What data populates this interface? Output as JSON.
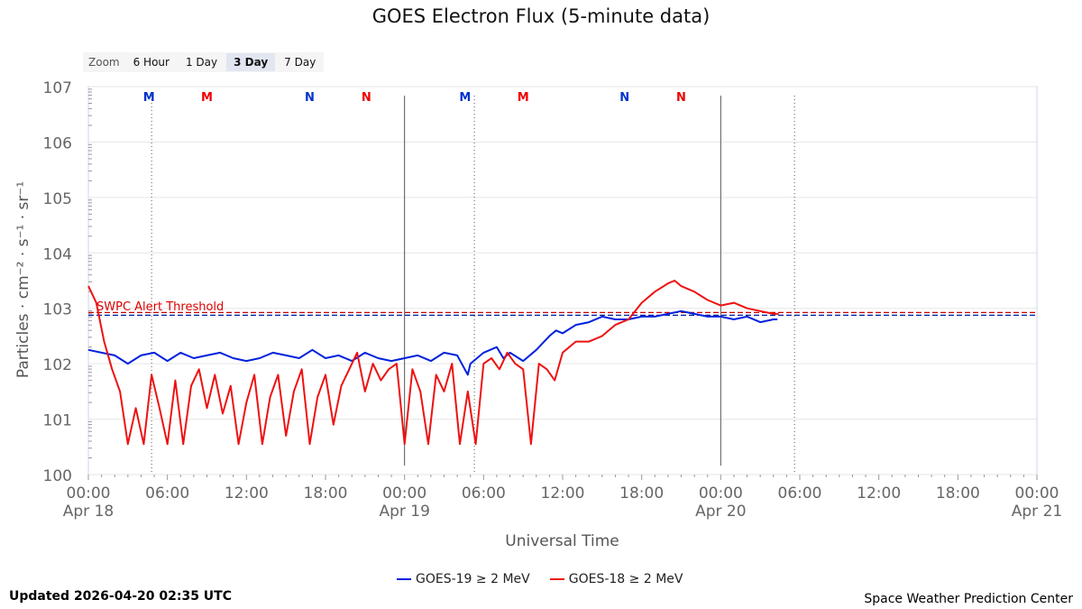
{
  "chart_data": {
    "type": "line",
    "title": "GOES Electron Flux (5-minute data)",
    "xlabel": "Universal Time",
    "ylabel": "Particles · cm⁻² · s⁻¹ · sr⁻¹",
    "yscale": "log",
    "ylim_exponent": [
      0,
      7
    ],
    "ytick_labels": [
      "100",
      "101",
      "102",
      "103",
      "104",
      "105",
      "106",
      "107"
    ],
    "xlim_hours": [
      0,
      72
    ],
    "xtick_labels": [
      {
        "hour": 0,
        "time": "00:00",
        "date": "Apr 18"
      },
      {
        "hour": 6,
        "time": "06:00",
        "date": ""
      },
      {
        "hour": 12,
        "time": "12:00",
        "date": ""
      },
      {
        "hour": 18,
        "time": "18:00",
        "date": ""
      },
      {
        "hour": 24,
        "time": "00:00",
        "date": "Apr 19"
      },
      {
        "hour": 30,
        "time": "06:00",
        "date": ""
      },
      {
        "hour": 36,
        "time": "12:00",
        "date": ""
      },
      {
        "hour": 42,
        "time": "18:00",
        "date": ""
      },
      {
        "hour": 48,
        "time": "00:00",
        "date": "Apr 20"
      },
      {
        "hour": 54,
        "time": "06:00",
        "date": ""
      },
      {
        "hour": 60,
        "time": "12:00",
        "date": ""
      },
      {
        "hour": 66,
        "time": "18:00",
        "date": ""
      },
      {
        "hour": 72,
        "time": "00:00",
        "date": "Apr 21"
      }
    ],
    "day_boundaries_hours": [
      24,
      48
    ],
    "dotted_markers_hours": [
      4.8,
      29.3,
      53.6
    ],
    "threshold": {
      "label": "SWPC Alert Threshold",
      "exponent": 2.9
    },
    "markers": [
      {
        "label": "M",
        "hour": 4.6,
        "color": "#0033cc"
      },
      {
        "label": "M",
        "hour": 9.0,
        "color": "#ee0000"
      },
      {
        "label": "N",
        "hour": 16.8,
        "color": "#0033cc"
      },
      {
        "label": "N",
        "hour": 21.1,
        "color": "#ee0000"
      },
      {
        "label": "M",
        "hour": 28.6,
        "color": "#0033cc"
      },
      {
        "label": "M",
        "hour": 33.0,
        "color": "#ee0000"
      },
      {
        "label": "N",
        "hour": 40.7,
        "color": "#0033cc"
      },
      {
        "label": "N",
        "hour": 45.0,
        "color": "#ee0000"
      }
    ],
    "series": [
      {
        "name": "GOES-19 ≥ 2 MeV",
        "color": "#0022dd",
        "x_hours": [
          0,
          1,
          2,
          3,
          4,
          5,
          6,
          7,
          8,
          9,
          10,
          11,
          12,
          13,
          14,
          15,
          16,
          17,
          18,
          19,
          20,
          21,
          22,
          23,
          24,
          25,
          26,
          27,
          28,
          28.8,
          29,
          30,
          31,
          31.5,
          32,
          33,
          34,
          35,
          35.5,
          36,
          37,
          38,
          39,
          40,
          41,
          42,
          43,
          44,
          45,
          46,
          47,
          48,
          49,
          50,
          51,
          52,
          52.3
        ],
        "exponent": [
          2.25,
          2.2,
          2.15,
          2.0,
          2.15,
          2.2,
          2.05,
          2.2,
          2.1,
          2.15,
          2.2,
          2.1,
          2.05,
          2.1,
          2.2,
          2.15,
          2.1,
          2.25,
          2.1,
          2.15,
          2.05,
          2.2,
          2.1,
          2.05,
          2.1,
          2.15,
          2.05,
          2.2,
          2.15,
          1.8,
          2.0,
          2.2,
          2.3,
          2.1,
          2.2,
          2.05,
          2.25,
          2.5,
          2.6,
          2.55,
          2.7,
          2.75,
          2.85,
          2.8,
          2.8,
          2.85,
          2.85,
          2.9,
          2.95,
          2.9,
          2.85,
          2.85,
          2.8,
          2.85,
          2.75,
          2.8,
          2.8
        ]
      },
      {
        "name": "GOES-18 ≥ 2 MeV",
        "color": "#ee1111",
        "x_hours": [
          0,
          0.6,
          1.2,
          1.8,
          2.4,
          3.0,
          3.6,
          4.2,
          4.8,
          5.4,
          6.0,
          6.6,
          7.2,
          7.8,
          8.4,
          9.0,
          9.6,
          10.2,
          10.8,
          11.4,
          12.0,
          12.6,
          13.2,
          13.8,
          14.4,
          15.0,
          15.6,
          16.2,
          16.8,
          17.4,
          18.0,
          18.6,
          19.2,
          19.8,
          20.4,
          21.0,
          21.6,
          22.2,
          22.8,
          23.4,
          24.0,
          24.6,
          25.2,
          25.8,
          26.4,
          27.0,
          27.6,
          28.2,
          28.8,
          29.4,
          30.0,
          30.6,
          31.2,
          31.8,
          32.4,
          33.0,
          33.6,
          34.2,
          34.8,
          35.4,
          36.0,
          37,
          38,
          39,
          40,
          41,
          42,
          43,
          44,
          44.5,
          45,
          46,
          47,
          48,
          49,
          50,
          51,
          52,
          52.4
        ],
        "exponent": [
          3.4,
          3.1,
          2.4,
          1.9,
          1.5,
          0.55,
          1.2,
          0.55,
          1.8,
          1.2,
          0.55,
          1.7,
          0.55,
          1.6,
          1.9,
          1.2,
          1.8,
          1.1,
          1.6,
          0.55,
          1.3,
          1.8,
          0.55,
          1.4,
          1.8,
          0.7,
          1.5,
          1.9,
          0.55,
          1.4,
          1.8,
          0.9,
          1.6,
          1.9,
          2.2,
          1.5,
          2.0,
          1.7,
          1.9,
          2.0,
          0.55,
          1.9,
          1.5,
          0.55,
          1.8,
          1.5,
          2.0,
          0.55,
          1.5,
          0.55,
          2.0,
          2.1,
          1.9,
          2.2,
          2.0,
          1.9,
          0.55,
          2.0,
          1.9,
          1.7,
          2.2,
          2.4,
          2.4,
          2.5,
          2.7,
          2.8,
          3.1,
          3.3,
          3.45,
          3.5,
          3.4,
          3.3,
          3.15,
          3.05,
          3.1,
          3.0,
          2.95,
          2.9,
          2.9
        ]
      }
    ]
  },
  "zoom": {
    "label": "Zoom",
    "options": [
      "6 Hour",
      "1 Day",
      "3 Day",
      "7 Day"
    ],
    "active": "3 Day"
  },
  "footer": {
    "updated": "Updated 2026-04-20 02:35 UTC",
    "credit": "Space Weather Prediction Center"
  }
}
